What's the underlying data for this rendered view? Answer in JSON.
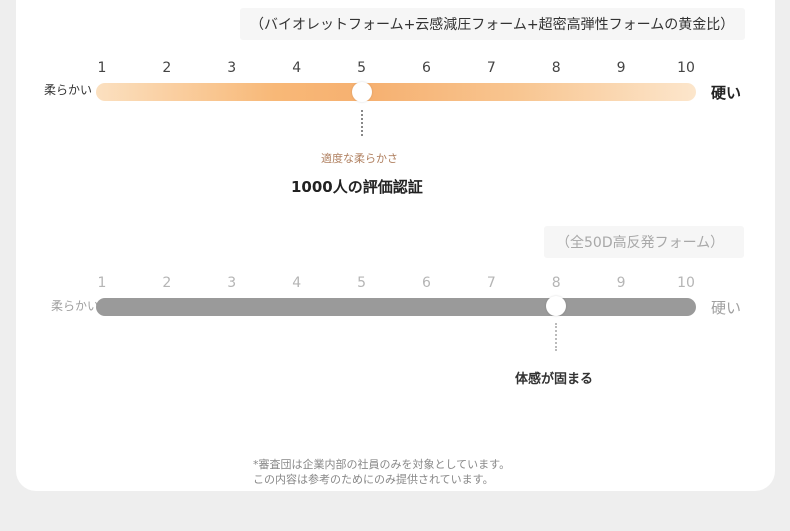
{
  "rating_scale": {
    "ticks": [
      "1",
      "2",
      "3",
      "4",
      "5",
      "6",
      "7",
      "8",
      "9",
      "10"
    ],
    "soft_label": "柔らかい",
    "hard_label": "硬い"
  },
  "product_scale": {
    "title": "（バイオレットフォーム+云感減圧フォーム+超密高弾性フォームの黄金比）",
    "firmness_value": 5,
    "subcaption": "適度な柔らかさ",
    "caption": "1000人の評価認証",
    "bar_gradient": [
      "#fbe0c0",
      "#f8b877",
      "#fce6cc"
    ]
  },
  "comparison_scale": {
    "title": "（全50D高反発フォーム）",
    "firmness_value": 8,
    "caption": "体感が固まる",
    "bar_color": "#9a9a9a"
  },
  "footnote": {
    "line1": "*審査団は企業内部の社員のみを対象としています。",
    "line2": "この内容は参考のためにのみ提供されています。"
  }
}
